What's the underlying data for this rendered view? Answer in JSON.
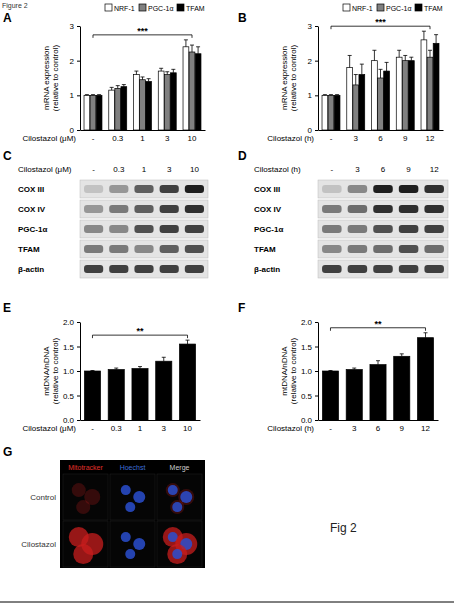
{
  "figure": {
    "title": "Figure 2",
    "caption": "Fig 2"
  },
  "chart_data": [
    {
      "type": "bar",
      "title": "A",
      "xlabel": "Cilostazol (μM)",
      "ylabel": [
        "mRNA expression",
        "(relative to control)"
      ],
      "categories": [
        "-",
        "0.3",
        "1",
        "3",
        "10"
      ],
      "series": [
        {
          "name": "NRF-1",
          "color": "#ffffff",
          "values": [
            1,
            1.15,
            1.6,
            1.7,
            2.4
          ],
          "errors": [
            0.02,
            0.08,
            0.1,
            0.08,
            0.2
          ]
        },
        {
          "name": "PGC-1α",
          "color": "#808080",
          "values": [
            1,
            1.2,
            1.45,
            1.6,
            2.25
          ],
          "errors": [
            0.02,
            0.08,
            0.08,
            0.08,
            0.2
          ]
        },
        {
          "name": "TFAM",
          "color": "#000000",
          "values": [
            1,
            1.25,
            1.4,
            1.65,
            2.2
          ],
          "errors": [
            0.02,
            0.06,
            0.08,
            0.1,
            0.2
          ]
        }
      ],
      "ylim": [
        0,
        3
      ],
      "yticks": [
        0,
        1,
        2,
        3
      ],
      "grid": false,
      "legend": "top",
      "annotations": [
        "***"
      ]
    },
    {
      "type": "bar",
      "title": "B",
      "xlabel": "Cilostazol (h)",
      "ylabel": [
        "mRNA expression",
        "(relative to control)"
      ],
      "categories": [
        "-",
        "3",
        "6",
        "9",
        "12"
      ],
      "series": [
        {
          "name": "NRF-1",
          "color": "#ffffff",
          "values": [
            1,
            1.8,
            2.0,
            2.1,
            2.6
          ],
          "errors": [
            0.02,
            0.35,
            0.3,
            0.2,
            0.25
          ]
        },
        {
          "name": "PGC-1α",
          "color": "#808080",
          "values": [
            1,
            1.3,
            1.5,
            2.0,
            2.1
          ],
          "errors": [
            0.02,
            0.3,
            0.25,
            0.15,
            0.2
          ]
        },
        {
          "name": "TFAM",
          "color": "#000000",
          "values": [
            1,
            1.6,
            1.7,
            2.0,
            2.5
          ],
          "errors": [
            0.02,
            0.3,
            0.25,
            0.1,
            0.25
          ]
        }
      ],
      "ylim": [
        0,
        3
      ],
      "yticks": [
        0,
        1,
        2,
        3
      ],
      "grid": false,
      "legend": "top",
      "annotations": [
        "***"
      ]
    },
    {
      "type": "bar",
      "title": "E",
      "xlabel": "Cilostazol (μM)",
      "ylabel": [
        "mtDNA/nDNA",
        "(relative to control)"
      ],
      "categories": [
        "-",
        "0.3",
        "1",
        "3",
        "10"
      ],
      "values": [
        1,
        1.03,
        1.05,
        1.2,
        1.55
      ],
      "errors": [
        0.01,
        0.03,
        0.04,
        0.08,
        0.08
      ],
      "color": "#000000",
      "ylim": [
        0,
        2
      ],
      "yticks": [
        {
          "value": 0,
          "label": "0.0"
        },
        {
          "value": 0.5,
          "label": "0.5"
        },
        {
          "value": 1,
          "label": "1.0"
        },
        {
          "value": 1.5,
          "label": "1.5"
        },
        {
          "value": 2,
          "label": "2.0"
        }
      ],
      "grid": false,
      "annotations": [
        "**"
      ]
    },
    {
      "type": "bar",
      "title": "F",
      "xlabel": "Cilostazol (h)",
      "ylabel": [
        "mtDNA/nDNA",
        "(relative to control)"
      ],
      "categories": [
        "-",
        "3",
        "6",
        "9",
        "12"
      ],
      "values": [
        1,
        1.03,
        1.13,
        1.3,
        1.68
      ],
      "errors": [
        0.01,
        0.03,
        0.08,
        0.05,
        0.1
      ],
      "color": "#000000",
      "ylim": [
        0,
        2
      ],
      "yticks": [
        {
          "value": 0,
          "label": "0.0"
        },
        {
          "value": 0.5,
          "label": "0.5"
        },
        {
          "value": 1,
          "label": "1.0"
        },
        {
          "value": 1.5,
          "label": "1.5"
        },
        {
          "value": 2,
          "label": "2.0"
        }
      ],
      "grid": false,
      "annotations": [
        "**"
      ]
    }
  ],
  "blots": [
    {
      "title": "C",
      "xlabel": "Cilostazol (μM)",
      "lanes": [
        "-",
        "0.3",
        "1",
        "3",
        "10"
      ],
      "rows": [
        {
          "label": "COX III",
          "bands": [
            0.35,
            0.5,
            0.7,
            0.8,
            0.9
          ]
        },
        {
          "label": "COX IV",
          "bands": [
            0.5,
            0.6,
            0.7,
            0.8,
            0.85
          ]
        },
        {
          "label": "PGC-1α",
          "bands": [
            0.55,
            0.55,
            0.75,
            0.8,
            0.8
          ]
        },
        {
          "label": "TFAM",
          "bands": [
            0.6,
            0.6,
            0.55,
            0.7,
            0.75
          ]
        },
        {
          "label": "β-actin",
          "bands": [
            0.8,
            0.8,
            0.8,
            0.8,
            0.8
          ]
        }
      ]
    },
    {
      "title": "D",
      "xlabel": "Cilostazol (h)",
      "lanes": [
        "-",
        "3",
        "6",
        "9",
        "12"
      ],
      "rows": [
        {
          "label": "COX III",
          "bands": [
            0.35,
            0.55,
            0.9,
            0.9,
            0.85
          ]
        },
        {
          "label": "COX IV",
          "bands": [
            0.6,
            0.65,
            0.85,
            0.85,
            0.85
          ]
        },
        {
          "label": "PGC-1α",
          "bands": [
            0.6,
            0.6,
            0.75,
            0.8,
            0.8
          ]
        },
        {
          "label": "TFAM",
          "bands": [
            0.55,
            0.6,
            0.65,
            0.75,
            0.65
          ]
        },
        {
          "label": "β-actin",
          "bands": [
            0.8,
            0.8,
            0.8,
            0.8,
            0.8
          ]
        }
      ]
    }
  ],
  "micrographs": {
    "title": "G",
    "channels": [
      "Mitotracker",
      "Hoechst",
      "Merge"
    ],
    "colors": [
      "#e0302a",
      "#3d6fd6",
      "#cccccc"
    ],
    "conditions": [
      "Control",
      "Cilostazol"
    ]
  }
}
